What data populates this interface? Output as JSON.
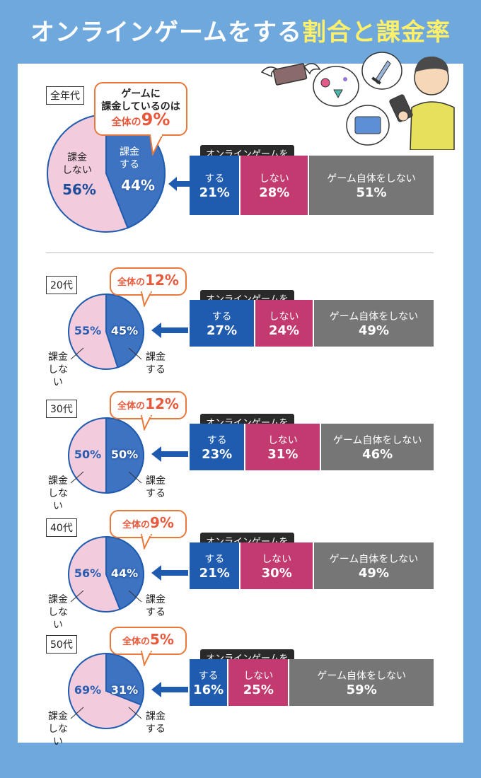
{
  "title": {
    "part1": "オンラインゲームをする",
    "part2": "割合と課金率"
  },
  "colors": {
    "blue": "#1F5BAF",
    "pink_bar": "#C23A70",
    "gray": "#767676",
    "pie_blue": "#3E73C2",
    "pie_pink": "#F2CBDD",
    "accent": "#E8583A"
  },
  "summary": {
    "age": "全年代",
    "bubble": {
      "line1": "ゲームに",
      "line2": "課金しているのは",
      "prefix": "全体の",
      "value": "9%"
    },
    "pie": {
      "pay_label1": "課金",
      "pay_label2": "する",
      "pay_value": "44%",
      "nopay_label1": "課金",
      "nopay_label2": "しない",
      "nopay_value": "56%"
    },
    "bar": {
      "tag": "オンラインゲームを",
      "play_label": "する",
      "play_value": "21%",
      "noplay_label": "しない",
      "noplay_value": "28%",
      "nogame_label": "ゲーム自体をしない",
      "nogame_value": "51%"
    }
  },
  "groups": [
    {
      "age": "20代",
      "bubble_prefix": "全体の",
      "bubble_value": "12%",
      "pay_value": "45%",
      "nopay_value": "55%",
      "nopay_label1": "課金",
      "nopay_label2": "しない",
      "pay_label1": "課金",
      "pay_label2": "する",
      "tag": "オンラインゲームを",
      "play_label": "する",
      "play_value": "27%",
      "noplay_label": "しない",
      "noplay_value": "24%",
      "nogame_label": "ゲーム自体をしない",
      "nogame_value": "49%"
    },
    {
      "age": "30代",
      "bubble_prefix": "全体の",
      "bubble_value": "12%",
      "pay_value": "50%",
      "nopay_value": "50%",
      "nopay_label1": "課金",
      "nopay_label2": "しない",
      "pay_label1": "課金",
      "pay_label2": "する",
      "tag": "オンラインゲームを",
      "play_label": "する",
      "play_value": "23%",
      "noplay_label": "しない",
      "noplay_value": "31%",
      "nogame_label": "ゲーム自体をしない",
      "nogame_value": "46%"
    },
    {
      "age": "40代",
      "bubble_prefix": "全体の",
      "bubble_value": "9%",
      "pay_value": "44%",
      "nopay_value": "56%",
      "nopay_label1": "課金",
      "nopay_label2": "しない",
      "pay_label1": "課金",
      "pay_label2": "する",
      "tag": "オンラインゲームを",
      "play_label": "する",
      "play_value": "21%",
      "noplay_label": "しない",
      "noplay_value": "30%",
      "nogame_label": "ゲーム自体をしない",
      "nogame_value": "49%"
    },
    {
      "age": "50代",
      "bubble_prefix": "全体の",
      "bubble_value": "5%",
      "pay_value": "31%",
      "nopay_value": "69%",
      "nopay_label1": "課金",
      "nopay_label2": "しない",
      "pay_label1": "課金",
      "pay_label2": "する",
      "tag": "オンラインゲームを",
      "play_label": "する",
      "play_value": "16%",
      "noplay_label": "しない",
      "noplay_value": "25%",
      "nogame_label": "ゲーム自体をしない",
      "nogame_value": "59%"
    }
  ],
  "chart_data": [
    {
      "type": "pie",
      "title": "全年代",
      "categories": [
        "課金する",
        "課金しない"
      ],
      "values": [
        44,
        56
      ]
    },
    {
      "type": "bar",
      "title": "全年代 オンラインゲームを",
      "categories": [
        "する",
        "しない",
        "ゲーム自体をしない"
      ],
      "values": [
        21,
        28,
        51
      ]
    },
    {
      "type": "pie",
      "title": "20代",
      "categories": [
        "課金する",
        "課金しない"
      ],
      "values": [
        45,
        55
      ]
    },
    {
      "type": "bar",
      "title": "20代 オンラインゲームを",
      "categories": [
        "する",
        "しない",
        "ゲーム自体をしない"
      ],
      "values": [
        27,
        24,
        49
      ]
    },
    {
      "type": "pie",
      "title": "30代",
      "categories": [
        "課金する",
        "課金しない"
      ],
      "values": [
        50,
        50
      ]
    },
    {
      "type": "bar",
      "title": "30代 オンラインゲームを",
      "categories": [
        "する",
        "しない",
        "ゲーム自体をしない"
      ],
      "values": [
        23,
        31,
        46
      ]
    },
    {
      "type": "pie",
      "title": "40代",
      "categories": [
        "課金する",
        "課金しない"
      ],
      "values": [
        44,
        56
      ]
    },
    {
      "type": "bar",
      "title": "40代 オンラインゲームを",
      "categories": [
        "する",
        "しない",
        "ゲーム自体をしない"
      ],
      "values": [
        21,
        30,
        49
      ]
    },
    {
      "type": "pie",
      "title": "50代",
      "categories": [
        "課金する",
        "課金しない"
      ],
      "values": [
        31,
        69
      ]
    },
    {
      "type": "bar",
      "title": "50代 オンラインゲームを",
      "categories": [
        "する",
        "しない",
        "ゲーム自体をしない"
      ],
      "values": [
        16,
        25,
        59
      ]
    }
  ]
}
